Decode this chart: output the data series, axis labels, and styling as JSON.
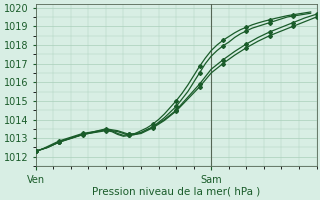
{
  "title": "",
  "xlabel": "Pression niveau de la mer( hPa )",
  "ylabel": "",
  "bg_color": "#d8eee4",
  "grid_color": "#aacfba",
  "line_color": "#1a5c2a",
  "ylim": [
    1011.5,
    1020.2
  ],
  "yticks": [
    1012,
    1013,
    1014,
    1015,
    1016,
    1017,
    1018,
    1019,
    1020
  ],
  "xlim": [
    0,
    48
  ],
  "ven_x": 0,
  "sam_x": 30,
  "vline_x": 30,
  "xtick_labels": [
    "Ven",
    "Sam"
  ],
  "xtick_positions": [
    0,
    30
  ],
  "line1_x": [
    0,
    1,
    2,
    3,
    4,
    5,
    6,
    7,
    8,
    9,
    10,
    11,
    12,
    13,
    14,
    15,
    16,
    17,
    18,
    19,
    20,
    21,
    22,
    23,
    24,
    25,
    26,
    27,
    28,
    29,
    30,
    31,
    32,
    33,
    34,
    35,
    36,
    37,
    38,
    39,
    40,
    41,
    42,
    43,
    44,
    45,
    46,
    47
  ],
  "line1_y": [
    1012.3,
    1012.4,
    1012.5,
    1012.65,
    1012.8,
    1012.9,
    1013.0,
    1013.1,
    1013.2,
    1013.25,
    1013.3,
    1013.35,
    1013.4,
    1013.35,
    1013.2,
    1013.1,
    1013.15,
    1013.2,
    1013.3,
    1013.45,
    1013.6,
    1013.85,
    1014.1,
    1014.4,
    1014.7,
    1015.1,
    1015.5,
    1016.0,
    1016.5,
    1017.0,
    1017.4,
    1017.7,
    1017.95,
    1018.15,
    1018.4,
    1018.6,
    1018.75,
    1018.9,
    1019.0,
    1019.1,
    1019.2,
    1019.3,
    1019.4,
    1019.5,
    1019.55,
    1019.6,
    1019.65,
    1019.7
  ],
  "line2_x": [
    0,
    1,
    2,
    3,
    4,
    5,
    6,
    7,
    8,
    9,
    10,
    11,
    12,
    13,
    14,
    15,
    16,
    17,
    18,
    19,
    20,
    21,
    22,
    23,
    24,
    25,
    26,
    27,
    28,
    29,
    30,
    31,
    32,
    33,
    34,
    35,
    36,
    37,
    38,
    39,
    40,
    41,
    42,
    43,
    44,
    45,
    46,
    47
  ],
  "line2_y": [
    1012.3,
    1012.4,
    1012.55,
    1012.7,
    1012.85,
    1012.95,
    1013.05,
    1013.15,
    1013.25,
    1013.3,
    1013.35,
    1013.4,
    1013.45,
    1013.4,
    1013.25,
    1013.15,
    1013.2,
    1013.25,
    1013.4,
    1013.55,
    1013.75,
    1014.0,
    1014.3,
    1014.65,
    1015.0,
    1015.4,
    1015.85,
    1016.35,
    1016.85,
    1017.3,
    1017.7,
    1018.0,
    1018.25,
    1018.45,
    1018.65,
    1018.82,
    1018.95,
    1019.08,
    1019.18,
    1019.27,
    1019.35,
    1019.43,
    1019.5,
    1019.57,
    1019.62,
    1019.67,
    1019.72,
    1019.77
  ],
  "line3_x": [
    0,
    2,
    4,
    6,
    8,
    10,
    12,
    14,
    16,
    18,
    20,
    22,
    24,
    26,
    28,
    30,
    32,
    34,
    36,
    38,
    40,
    42,
    44,
    46,
    48
  ],
  "line3_y": [
    1012.3,
    1012.5,
    1012.8,
    1013.0,
    1013.2,
    1013.35,
    1013.5,
    1013.4,
    1013.2,
    1013.3,
    1013.6,
    1014.0,
    1014.5,
    1015.2,
    1015.9,
    1016.7,
    1017.2,
    1017.65,
    1018.05,
    1018.4,
    1018.7,
    1018.95,
    1019.2,
    1019.45,
    1019.65
  ],
  "line4_x": [
    0,
    2,
    4,
    6,
    8,
    10,
    12,
    14,
    16,
    18,
    20,
    22,
    24,
    26,
    28,
    30,
    32,
    34,
    36,
    38,
    40,
    42,
    44,
    46,
    48
  ],
  "line4_y": [
    1012.3,
    1012.5,
    1012.78,
    1012.98,
    1013.18,
    1013.32,
    1013.45,
    1013.35,
    1013.15,
    1013.25,
    1013.55,
    1013.95,
    1014.45,
    1015.1,
    1015.75,
    1016.5,
    1017.0,
    1017.45,
    1017.85,
    1018.2,
    1018.5,
    1018.75,
    1019.0,
    1019.25,
    1019.5
  ]
}
